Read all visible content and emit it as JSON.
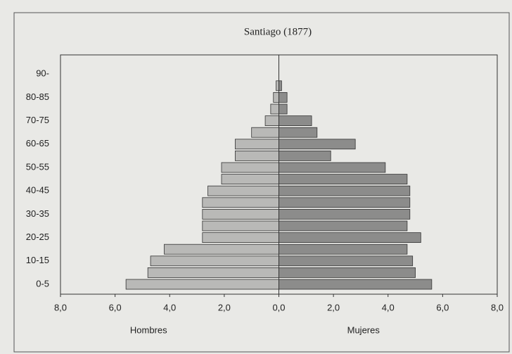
{
  "chart_data": {
    "type": "pyramid",
    "title": "Santiago (1877)",
    "categories": [
      "0-5",
      null,
      "10-15",
      null,
      "20-25",
      null,
      "30-35",
      null,
      "40-45",
      null,
      "50-55",
      null,
      "60-65",
      null,
      "70-75",
      null,
      "80-85",
      null,
      "90-"
    ],
    "series": [
      {
        "name": "Hombres",
        "color": "#b9b9b7",
        "side": "left",
        "values": [
          5.6,
          4.8,
          4.7,
          4.2,
          2.8,
          2.8,
          2.8,
          2.8,
          2.6,
          2.1,
          2.1,
          1.6,
          1.6,
          1.0,
          0.5,
          0.3,
          0.2,
          0.1,
          0.0
        ]
      },
      {
        "name": "Mujeres",
        "color": "#8c8c8b",
        "side": "right",
        "values": [
          5.6,
          5.0,
          4.9,
          4.7,
          5.2,
          4.7,
          4.8,
          4.8,
          4.8,
          4.7,
          3.9,
          1.9,
          2.8,
          1.4,
          1.2,
          0.3,
          0.3,
          0.1,
          0.0
        ]
      }
    ],
    "xlim": [
      -8,
      8
    ],
    "xticks": [
      {
        "value": -8,
        "label": "8,0"
      },
      {
        "value": -6,
        "label": "6,0"
      },
      {
        "value": -4,
        "label": "4,0"
      },
      {
        "value": -2,
        "label": "2,0"
      },
      {
        "value": 0,
        "label": "0,0"
      },
      {
        "value": 2,
        "label": "2,0"
      },
      {
        "value": 4,
        "label": "4,0"
      },
      {
        "value": 6,
        "label": "6,0"
      },
      {
        "value": 8,
        "label": "8,0"
      }
    ]
  }
}
